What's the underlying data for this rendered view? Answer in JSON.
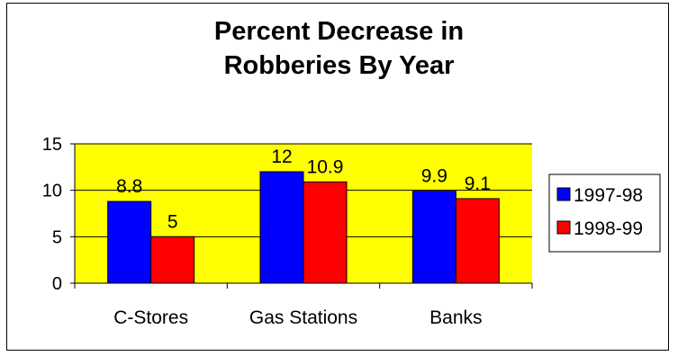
{
  "chart_data": {
    "type": "bar",
    "title_lines": [
      "Percent Decrease in",
      "Robberies By Year"
    ],
    "categories": [
      "C-Stores",
      "Gas Stations",
      "Banks"
    ],
    "series": [
      {
        "name": "1997-98",
        "values": [
          8.8,
          12,
          9.9
        ],
        "color": "#0000ff"
      },
      {
        "name": "1998-99",
        "values": [
          5,
          10.9,
          9.1
        ],
        "color": "#ff0000"
      }
    ],
    "data_labels": [
      [
        "8.8",
        "12",
        "9.9"
      ],
      [
        "5",
        "10.9",
        "9.1"
      ]
    ],
    "yticks": [
      0,
      5,
      10,
      15
    ],
    "ylim": [
      0,
      15
    ],
    "grid": true,
    "plot_background": "#ffff00",
    "legend_position": "right"
  }
}
